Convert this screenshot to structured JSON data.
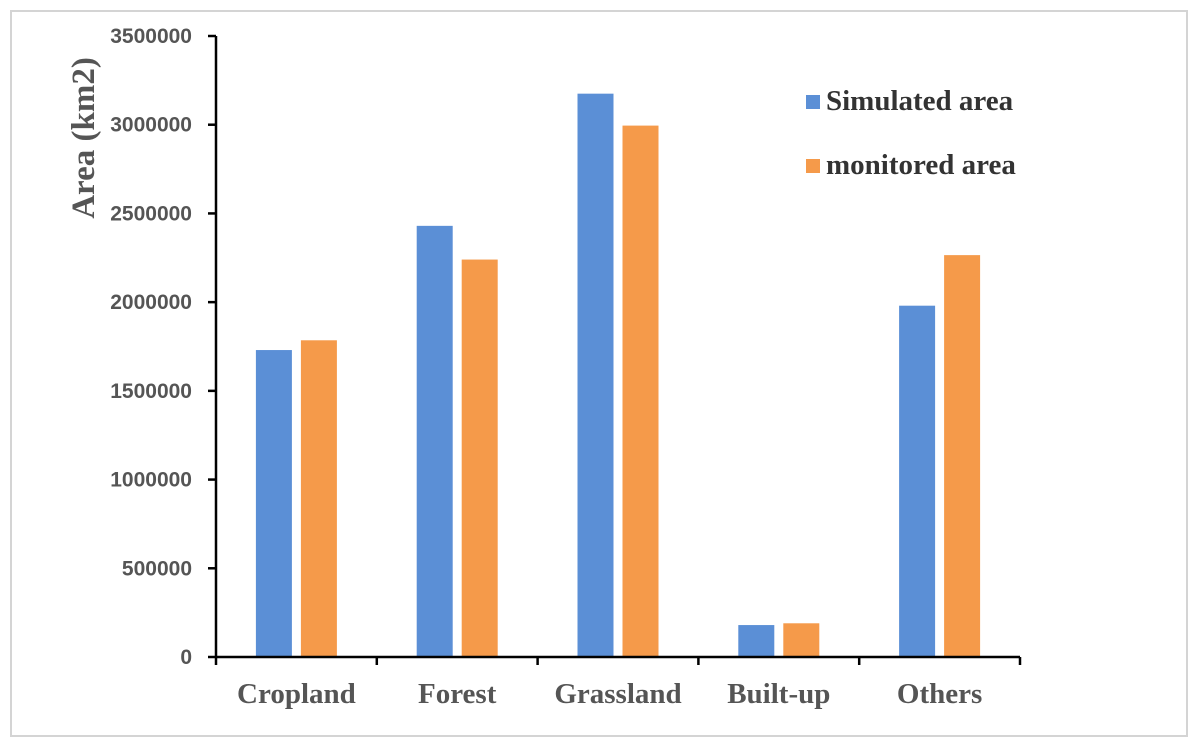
{
  "chart_data": {
    "type": "bar",
    "title": "",
    "xlabel": "",
    "ylabel": "Area (km2)",
    "ylim": [
      0,
      3500000
    ],
    "yticks": [
      0,
      500000,
      1000000,
      1500000,
      2000000,
      2500000,
      3000000,
      3500000
    ],
    "ytick_labels": [
      "0",
      "500000",
      "1000000",
      "1500000",
      "2000000",
      "2500000",
      "3000000",
      "3500000"
    ],
    "categories": [
      "Cropland",
      "Forest",
      "Grassland",
      "Built-up",
      "Others"
    ],
    "series": [
      {
        "name": "Simulated area",
        "color": "#5b8fd6",
        "values": [
          1730000,
          2430000,
          3175000,
          180000,
          1980000
        ]
      },
      {
        "name": "monitored area",
        "color": "#f59a4a",
        "values": [
          1785000,
          2240000,
          2995000,
          190000,
          2265000
        ]
      }
    ],
    "legend_position": "top-right",
    "grid": false
  }
}
